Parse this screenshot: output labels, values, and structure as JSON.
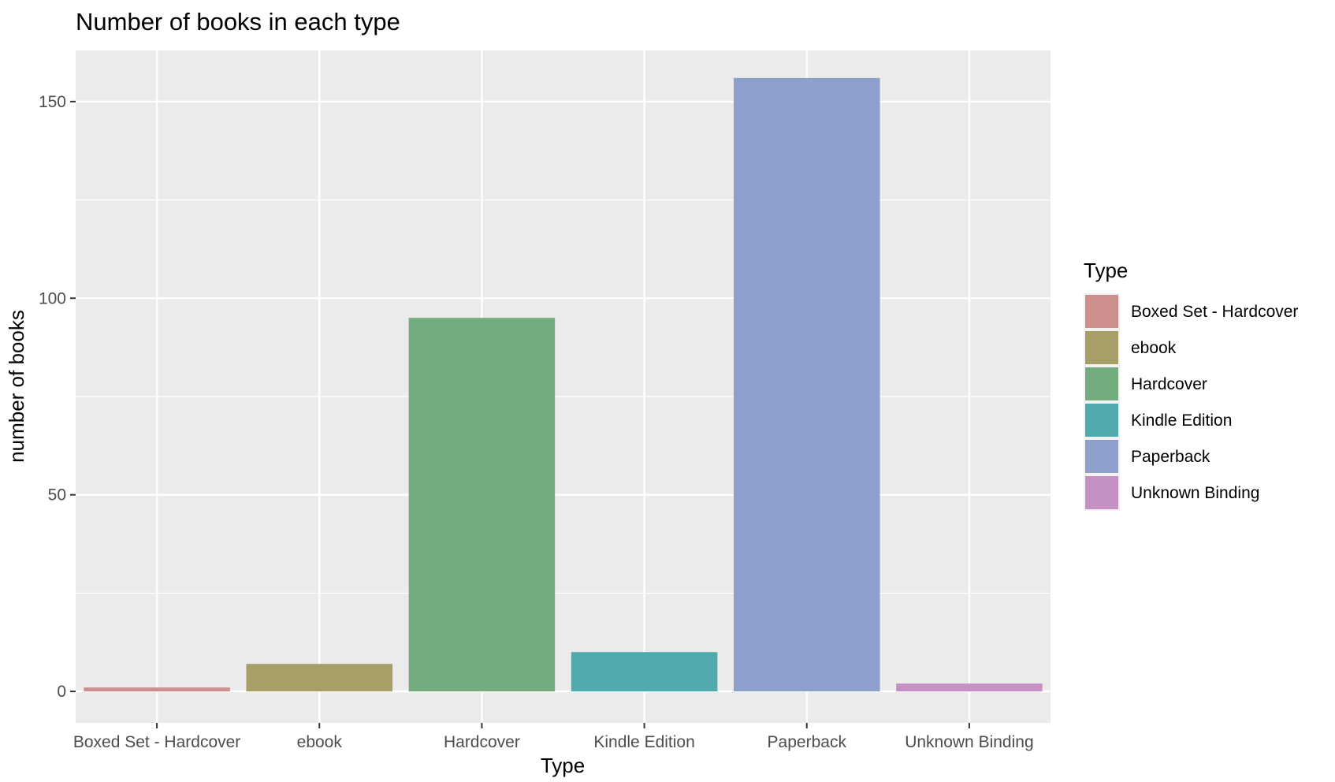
{
  "chart_data": {
    "type": "bar",
    "title": "Number of books in each type",
    "xlabel": "Type",
    "ylabel": "number of books",
    "categories": [
      "Boxed Set - Hardcover",
      "ebook",
      "Hardcover",
      "Kindle Edition",
      "Paperback",
      "Unknown Binding"
    ],
    "values": [
      1,
      7,
      95,
      10,
      156,
      2
    ],
    "colors": [
      "#CC8F8D",
      "#A89F68",
      "#73AC7F",
      "#51AAAE",
      "#8D9FCA",
      "#C591C2"
    ],
    "ylim": [
      -8,
      163
    ],
    "yticks": [
      0,
      50,
      100,
      150
    ],
    "grid": true,
    "panel_background": "#EBEBEB",
    "legend": {
      "title": "Type",
      "position": "right",
      "entries": [
        "Boxed Set - Hardcover",
        "ebook",
        "Hardcover",
        "Kindle Edition",
        "Paperback",
        "Unknown Binding"
      ]
    }
  }
}
